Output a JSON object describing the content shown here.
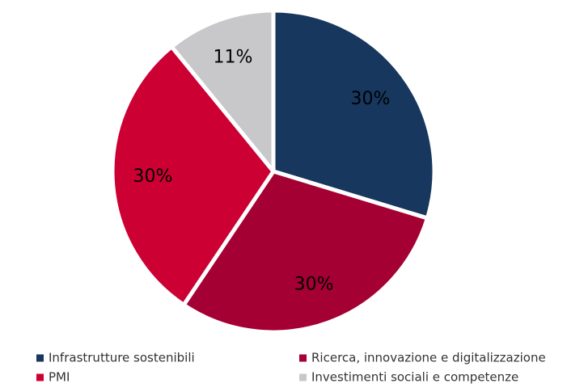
{
  "chart_data": {
    "type": "pie",
    "categories": [
      "Infrastrutture sostenibili",
      "Ricerca, innovazione e digitalizzazione",
      "PMI",
      "Investimenti sociali e competenze"
    ],
    "values": [
      30,
      30,
      30,
      11
    ],
    "value_labels": [
      "30%",
      "30%",
      "30%",
      "11%"
    ],
    "colors": [
      "#17375e",
      "#a50034",
      "#cc0033",
      "#c8c8ca"
    ],
    "legend": "bottom"
  }
}
